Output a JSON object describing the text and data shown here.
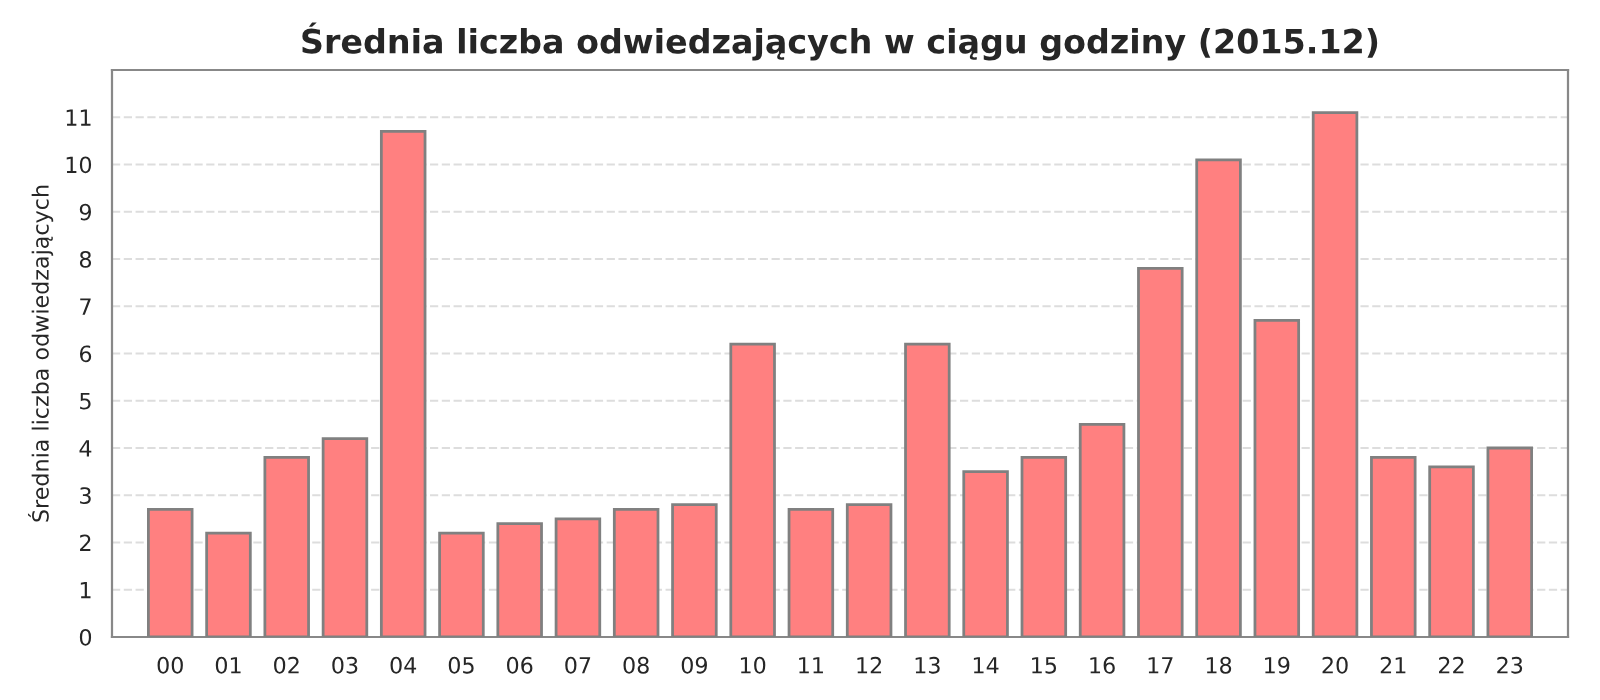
{
  "chart_data": {
    "type": "bar",
    "title": "Średnia liczba odwiedzających w ciągu godziny (2015.12)",
    "ylabel": "Średnia liczba odwiedzających",
    "categories": [
      "00",
      "01",
      "02",
      "03",
      "04",
      "05",
      "06",
      "07",
      "08",
      "09",
      "10",
      "11",
      "12",
      "13",
      "14",
      "15",
      "16",
      "17",
      "18",
      "19",
      "20",
      "21",
      "22",
      "23"
    ],
    "values": [
      2.7,
      2.2,
      3.8,
      4.2,
      10.7,
      2.2,
      2.4,
      2.5,
      2.7,
      2.8,
      6.2,
      2.7,
      2.8,
      6.2,
      3.5,
      3.8,
      4.5,
      7.8,
      10.1,
      6.7,
      11.1,
      3.8,
      3.6,
      4.0
    ],
    "color": "#ff8080",
    "ylim": [
      0,
      12
    ],
    "yticks": [
      0,
      1,
      2,
      3,
      4,
      5,
      6,
      7,
      8,
      9,
      10,
      11
    ],
    "grid": "y"
  }
}
